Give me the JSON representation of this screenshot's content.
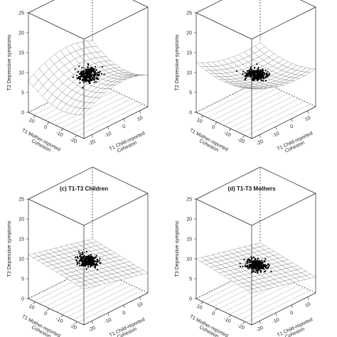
{
  "chart_data": [
    {
      "type": "surface3d",
      "title": "",
      "zlabel": "T2 Depressive symptoms",
      "xlabel_lines": [
        "T1 Mother-reported",
        "Cohesion"
      ],
      "ylabel_lines": [
        "T1 Child-reported",
        "Cohesion"
      ],
      "zticks": [
        "0",
        "5",
        "10",
        "15",
        "20",
        "25"
      ],
      "xticks": [
        "10",
        "0",
        "-10",
        "-20"
      ],
      "yticks": [
        "-20",
        "-10",
        "0",
        "10"
      ],
      "zlim": [
        0,
        25
      ],
      "surface": {
        "shape": "saddle",
        "center_z": 8,
        "low_corner_z": 4
      }
    },
    {
      "type": "surface3d",
      "title": "",
      "zlabel": "T2 Depressive symptoms",
      "xlabel_lines": [
        "T1 Mother-reported",
        "Cohesion"
      ],
      "ylabel_lines": [
        "T1 Child-reported",
        "Cohesion"
      ],
      "zticks": [
        "0",
        "5",
        "10",
        "15",
        "20",
        "25"
      ],
      "xticks": [
        "10",
        "0",
        "-10",
        "-20"
      ],
      "yticks": [
        "-20",
        "-10",
        "0",
        "10"
      ],
      "zlim": [
        0,
        25
      ],
      "surface": {
        "shape": "bowl",
        "center_z": 8,
        "low_corner_z": 5
      }
    },
    {
      "type": "surface3d",
      "title": "(c) T1-T3 Children",
      "zlabel": "T3 Depressive symptoms",
      "xlabel_lines": [
        "T1 Mother-reported",
        "Cohesion"
      ],
      "ylabel_lines": [
        "T1 Child-reported",
        "Cohesion"
      ],
      "zticks": [
        "0",
        "5",
        "10",
        "15",
        "20",
        "25"
      ],
      "xticks": [
        "10",
        "0",
        "-10",
        "-20"
      ],
      "yticks": [
        "-20",
        "-10",
        "0",
        "10"
      ],
      "zlim": [
        0,
        25
      ],
      "surface": {
        "shape": "plane",
        "center_z": 8,
        "low_corner_z": 6
      }
    },
    {
      "type": "surface3d",
      "title": "(d) T1-T3 Mothers",
      "zlabel": "T3 Depressive symptoms",
      "xlabel_lines": [
        "T1 Mother-reported",
        "Cohesion"
      ],
      "ylabel_lines": [
        "T1 Child-reported",
        "Cohesion"
      ],
      "zticks": [
        "0",
        "5",
        "10",
        "15",
        "20",
        "25"
      ],
      "xticks": [
        "10",
        "0",
        "-10",
        "-20"
      ],
      "yticks": [
        "-20",
        "-10",
        "0",
        "10"
      ],
      "zlim": [
        0,
        25
      ],
      "surface": {
        "shape": "plane",
        "center_z": 7,
        "low_corner_z": 4
      }
    }
  ]
}
